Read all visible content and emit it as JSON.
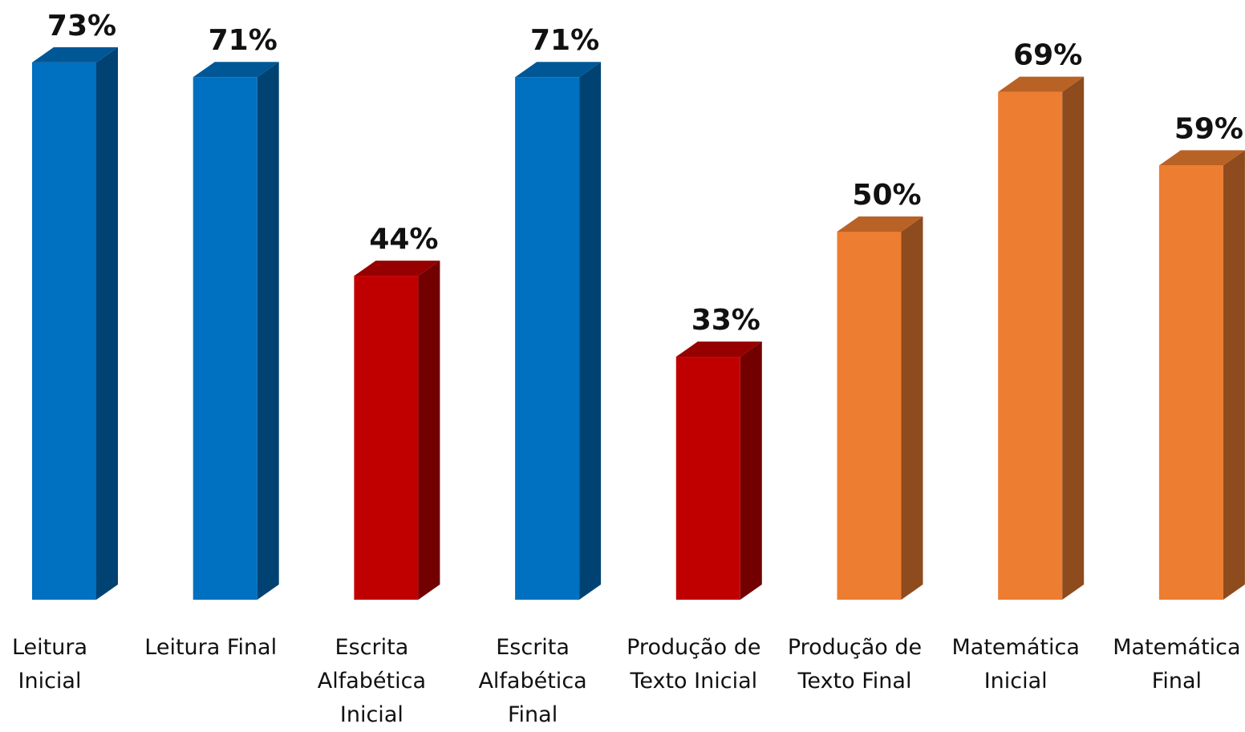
{
  "chart_data": {
    "type": "bar3d",
    "categories": [
      "Leitura\nInicial",
      "Leitura Final",
      "Escrita\nAlfabética\nInicial",
      "Escrita\nAlfabética\nFinal",
      "Produção de\nTexto Inicial",
      "Produção de\nTexto Final",
      "Matemática\nInicial",
      "Matemática\nFinal"
    ],
    "values": [
      73,
      71,
      44,
      71,
      33,
      50,
      69,
      59
    ],
    "value_labels": [
      "73%",
      "71%",
      "44%",
      "71%",
      "33%",
      "50%",
      "69%",
      "59%"
    ],
    "colors": [
      "#0070c0",
      "#0070c0",
      "#c00000",
      "#0070c0",
      "#c00000",
      "#ed7d31",
      "#ed7d31",
      "#ed7d31"
    ]
  }
}
